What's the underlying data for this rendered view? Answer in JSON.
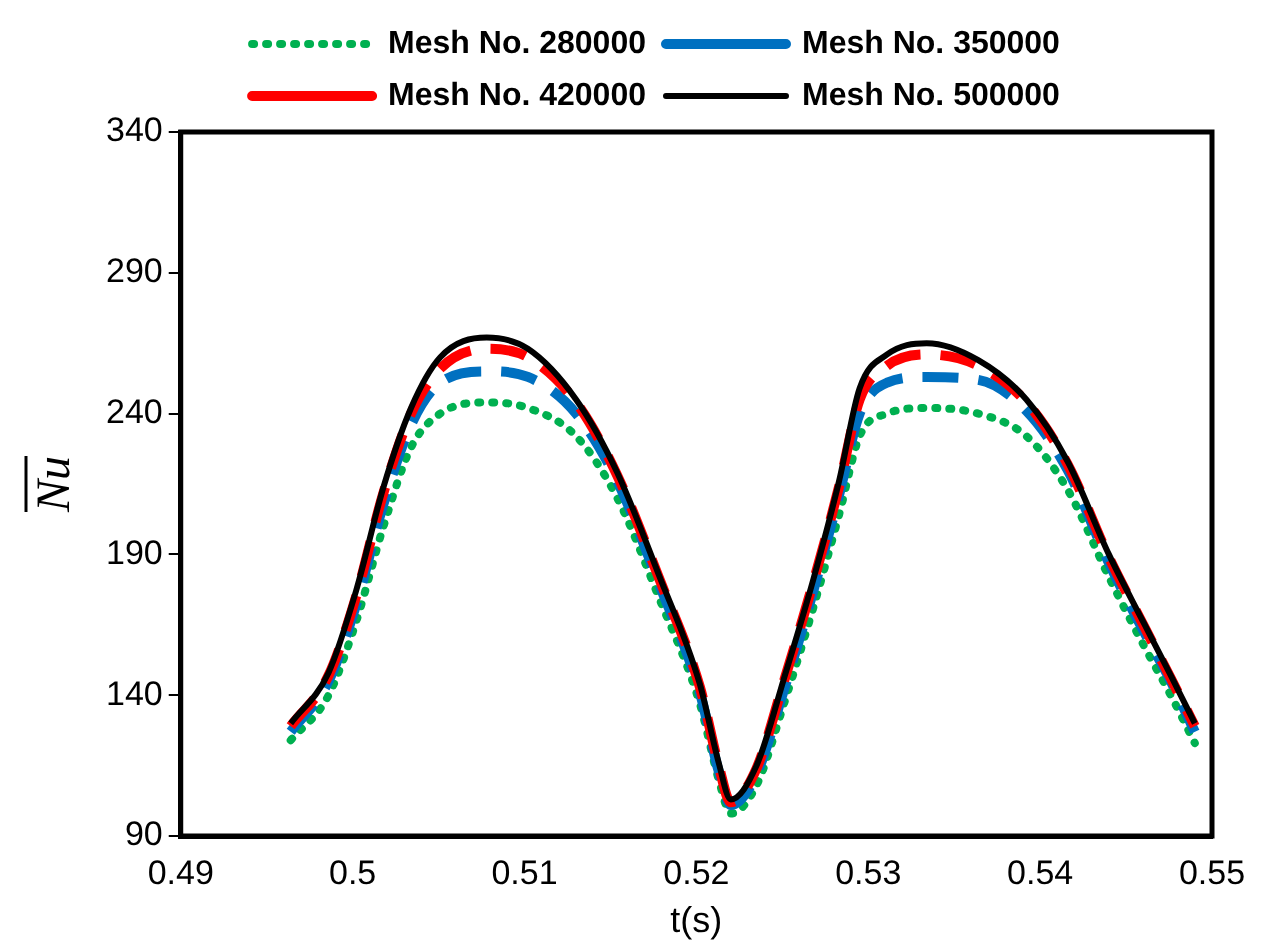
{
  "chart_data": {
    "type": "line",
    "xlabel": "t(s)",
    "ylabel": "Nu",
    "xlim": [
      0.49,
      0.55
    ],
    "xticks": [
      0.49,
      0.5,
      0.51,
      0.52,
      0.53,
      0.54,
      0.55
    ],
    "ylim": [
      90,
      340
    ],
    "yticks": [
      90,
      140,
      190,
      240,
      290,
      340
    ],
    "grid": false,
    "legend": "top",
    "marker": "none",
    "x": [
      0.4964,
      0.4986,
      0.5002,
      0.5018,
      0.5034,
      0.5051,
      0.5078,
      0.5102,
      0.513,
      0.5154,
      0.5178,
      0.5202,
      0.5213,
      0.522,
      0.5235,
      0.5251,
      0.5268,
      0.5283,
      0.5295,
      0.5311,
      0.5334,
      0.5364,
      0.5392,
      0.5416,
      0.544,
      0.546,
      0.5476,
      0.549
    ],
    "series": [
      {
        "name": "Mesh No. 280000",
        "color": "#00b050",
        "line_style": "dotted",
        "values": [
          124,
          140,
          166,
          200,
          228,
          240,
          244,
          242,
          232,
          210,
          175,
          137,
          110,
          98,
          108,
          137,
          171,
          204,
          232,
          240,
          242,
          240,
          232,
          213,
          182,
          158,
          140,
          123
        ]
      },
      {
        "name": "Mesh No. 350000",
        "color": "#0070c0",
        "line_style": "dashed",
        "values": [
          127,
          145,
          172,
          208,
          236,
          251,
          255,
          253,
          240,
          216,
          180,
          141,
          113,
          101,
          112,
          142,
          177,
          211,
          240,
          251,
          253,
          252,
          241,
          220,
          187,
          163,
          145,
          127
        ]
      },
      {
        "name": "Mesh No. 420000",
        "color": "#ff0000",
        "line_style": "dashed",
        "values": [
          129,
          147,
          175,
          212,
          240,
          256,
          263,
          260,
          244,
          218,
          182,
          143,
          115,
          102,
          114,
          145,
          180,
          214,
          245,
          257,
          261,
          257,
          244,
          222,
          189,
          165,
          146,
          129
        ]
      },
      {
        "name": "Mesh No. 500000",
        "color": "#000000",
        "line_style": "solid",
        "values": [
          130,
          148,
          177,
          214,
          242,
          260,
          267,
          263,
          245,
          219,
          183,
          144,
          116,
          103,
          115,
          146,
          181,
          216,
          249,
          261,
          265,
          259,
          245,
          223,
          190,
          166,
          147,
          130
        ]
      }
    ]
  }
}
